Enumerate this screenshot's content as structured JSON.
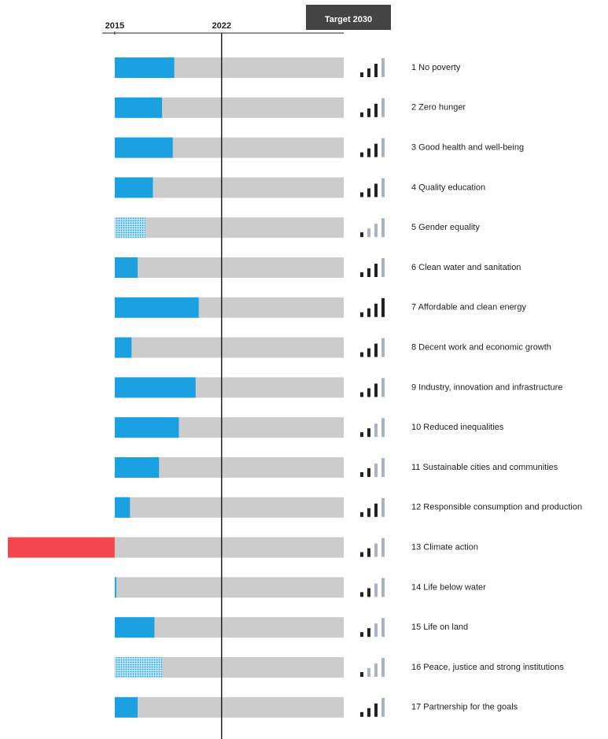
{
  "chart_data": {
    "type": "progress-bar",
    "categories": [
      "1 No poverty",
      "2 Zero hunger",
      "3 Good health and well-being",
      "4 Quality education",
      "5 Gender equality",
      "6 Clean water and sanitation",
      "7 Affordable and clean energy",
      "8 Decent work and economic growth",
      "9 Industry, innovation and infrastructure",
      "10 Reduced inequalities",
      "11 Sustainable cities and communities",
      "12 Responsible consumption and production",
      "13 Climate action",
      "14 Life below water",
      "15 Life on land",
      "16 Peace, justice and strong institutions",
      "17 Partnership for the goals"
    ],
    "values": [
      2018.9,
      2018.1,
      2018.8,
      2017.5,
      2017.0,
      2016.5,
      2020.5,
      2016.1,
      2020.3,
      2019.2,
      2017.9,
      2016.0,
      2008.0,
      2015.1,
      2017.6,
      2018.1,
      2016.5
    ],
    "colors": [
      "#1ba1e2",
      "#1ba1e2",
      "#1ba1e2",
      "#1ba1e2",
      "#1ba1e2",
      "#1ba1e2",
      "#1ba1e2",
      "#1ba1e2",
      "#1ba1e2",
      "#1ba1e2",
      "#1ba1e2",
      "#1ba1e2",
      "#f2474c",
      "#1ba1e2",
      "#1ba1e2",
      "#1ba1e2",
      "#1ba1e2"
    ],
    "hatched": [
      false,
      false,
      false,
      false,
      true,
      false,
      false,
      false,
      false,
      false,
      false,
      false,
      false,
      false,
      false,
      true,
      false
    ],
    "signal": [
      3,
      3,
      3,
      3,
      1,
      3,
      4,
      3,
      3,
      2,
      2,
      3,
      2,
      2,
      2,
      1,
      3
    ],
    "track_color": "#cccccc",
    "xlim": [
      2008,
      2030
    ],
    "xticks": [
      2015,
      2022,
      {
        "value": 2030,
        "label": "Target 2030"
      }
    ]
  }
}
